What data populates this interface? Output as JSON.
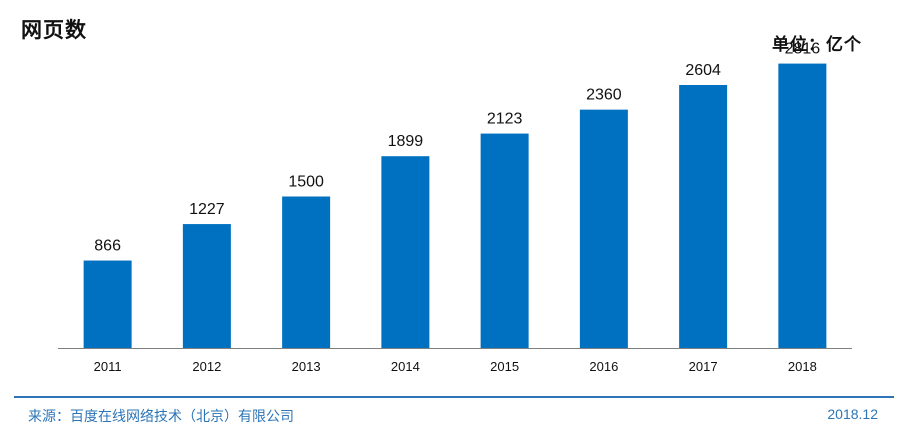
{
  "header": {
    "title": "网页数",
    "unit_label": "单位：亿个"
  },
  "footer": {
    "source": "来源：百度在线网络技术（北京）有限公司",
    "date": "2018.12",
    "accent_color": "#2e75b6"
  },
  "chart_data": {
    "type": "bar",
    "title": "网页数",
    "categories": [
      "2011",
      "2012",
      "2013",
      "2014",
      "2015",
      "2016",
      "2017",
      "2018"
    ],
    "values": [
      866,
      1227,
      1500,
      1899,
      2123,
      2360,
      2604,
      2816
    ],
    "ylim": [
      0,
      3000
    ],
    "grid": false,
    "legend": "none",
    "bar_color": "#0070c0",
    "axis_color": "#7f7f7f"
  }
}
